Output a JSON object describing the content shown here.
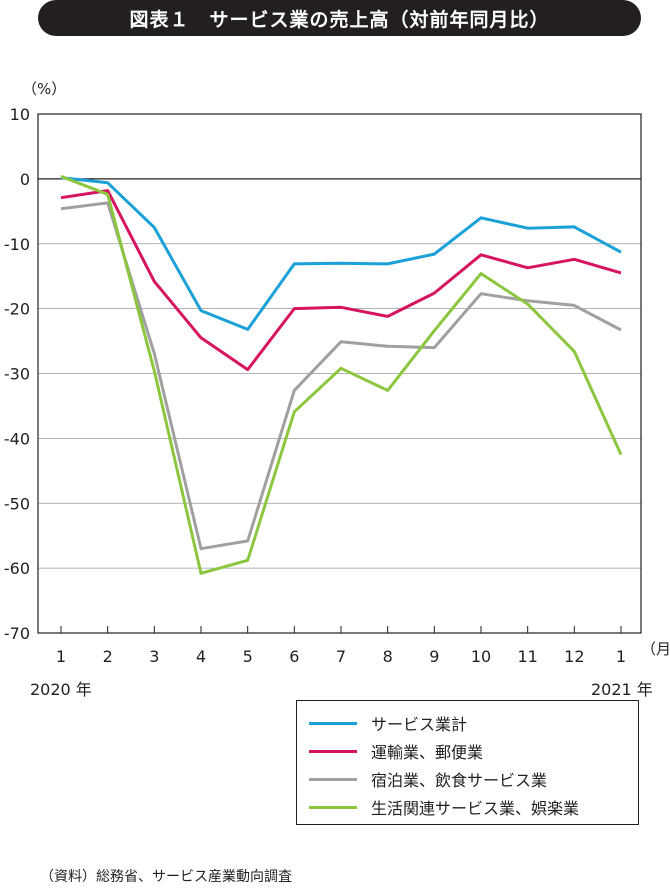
{
  "title": "図表１　サービス業の売上高（対前年同月比）",
  "unit_label": "（%）",
  "month_unit": "（月）",
  "year_start": "2020 年",
  "year_end": "2021 年",
  "source": "（資料）総務省、サービス産業動向調査",
  "chart_data": {
    "type": "line",
    "title": "図表１　サービス業の売上高（対前年同月比）",
    "categories": [
      "1",
      "2",
      "3",
      "4",
      "5",
      "6",
      "7",
      "8",
      "9",
      "10",
      "11",
      "12",
      "1"
    ],
    "ylim": [
      -70,
      10
    ],
    "yticks": [
      10,
      0,
      -10,
      -20,
      -30,
      -40,
      -50,
      -60,
      -70
    ],
    "ylabel": "（%）",
    "xlabel": "（月）",
    "grid": true,
    "legend_position": "bottom-right",
    "series": [
      {
        "name": "サービス業計",
        "color": "#1ba1d8",
        "values": [
          0.2,
          -0.6,
          -7.5,
          -20.3,
          -23.2,
          -13.1,
          -13.0,
          -13.1,
          -11.6,
          -6.0,
          -7.6,
          -7.4,
          -11.3
        ]
      },
      {
        "name": "運輸業、郵便業",
        "color": "#d6145f",
        "values": [
          -2.9,
          -1.8,
          -15.8,
          -24.5,
          -29.4,
          -20.0,
          -19.8,
          -21.2,
          -17.6,
          -11.7,
          -13.7,
          -12.4,
          -14.5
        ]
      },
      {
        "name": "宿泊業、飲食サービス業",
        "color": "#a0a0a0",
        "values": [
          -4.6,
          -3.7,
          -26.9,
          -57.0,
          -55.8,
          -32.6,
          -25.1,
          -25.8,
          -26.0,
          -17.7,
          -18.8,
          -19.5,
          -23.3
        ]
      },
      {
        "name": "生活関連サービス業、娯楽業",
        "color": "#8cc63f",
        "values": [
          0.4,
          -2.4,
          -29.6,
          -60.8,
          -58.8,
          -35.9,
          -29.2,
          -32.6,
          -23.4,
          -14.6,
          -19.3,
          -26.6,
          -42.5
        ]
      }
    ]
  }
}
